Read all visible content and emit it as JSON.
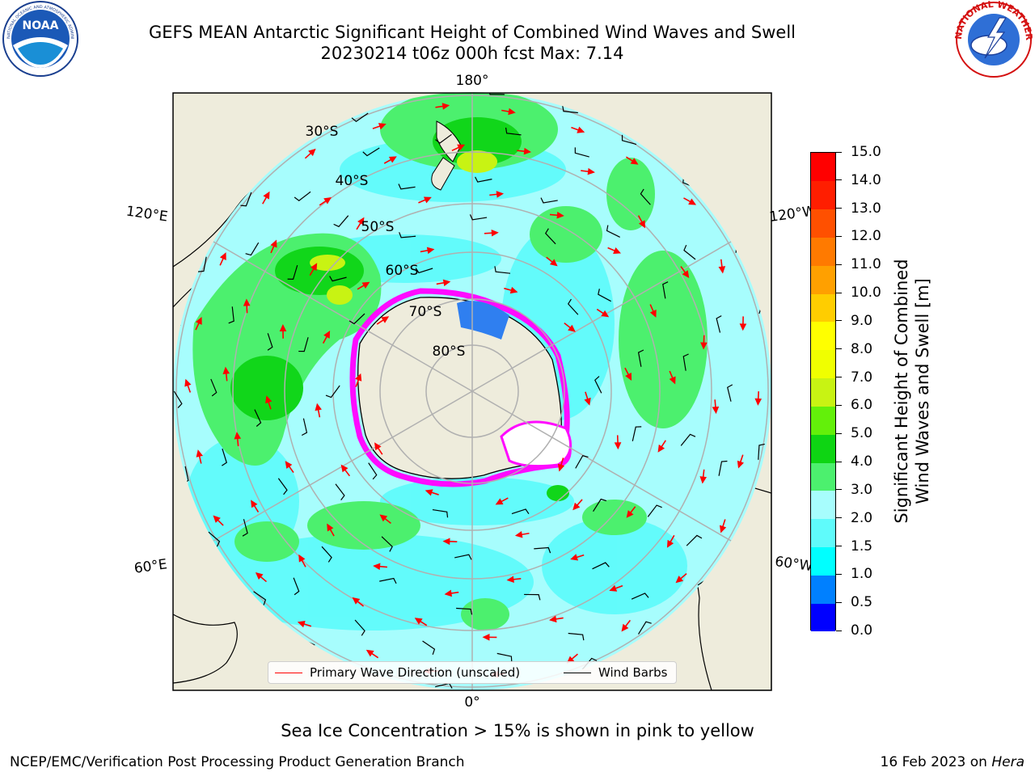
{
  "title": {
    "line1": "GEFS MEAN Antarctic Significant Height of Combined Wind Waves and Swell",
    "line2": "20230214 t06z 000h fcst   Max: 7.14"
  },
  "logos": {
    "left": {
      "icon": "noaa-logo",
      "text": "NOAA",
      "ring_text": "NATIONAL OCEANIC AND ATMOSPHERIC ADMINISTRATION · U.S. DEPARTMENT OF COMMERCE"
    },
    "right": {
      "icon": "nws-logo",
      "ring_text": "NATIONAL WEATHER SERVICE"
    }
  },
  "map": {
    "projection": "south-polar-stereographic",
    "longitude_labels": {
      "top": "180°",
      "bottom": "0°",
      "upper_left": "120°E",
      "lower_left": "60°E",
      "upper_right": "120°W",
      "lower_right": "60°W"
    },
    "latitude_labels": [
      "30°S",
      "40°S",
      "50°S",
      "60°S",
      "70°S",
      "80°S"
    ],
    "colors": {
      "land": "#eeecdc",
      "ocean_light": "#a7fdfd",
      "ocean_mid": "#5ffbfb",
      "wave_3_4": "#4cf06e",
      "wave_4_5": "#11d61a",
      "wave_6_7": "#c8f313",
      "ice_high": "#ff0aff",
      "arrow": "#ff0000",
      "barb": "#000000"
    }
  },
  "colorbar": {
    "label_line1": "Significant Height of Combined",
    "label_line2": "Wind Waves and Swell [m]",
    "levels": [
      "0.0",
      "0.5",
      "1.0",
      "1.5",
      "2.0",
      "3.0",
      "4.0",
      "5.0",
      "6.0",
      "7.0",
      "8.0",
      "9.0",
      "10.0",
      "11.0",
      "12.0",
      "13.0",
      "14.0",
      "15.0"
    ],
    "colors": [
      "#0000ff",
      "#0080ff",
      "#00ffff",
      "#5ffbfb",
      "#a7fdfd",
      "#4cf06e",
      "#0ed513",
      "#63f00a",
      "#c8f313",
      "#f0ff00",
      "#ffff00",
      "#ffcd00",
      "#ffa000",
      "#ff7a00",
      "#ff5000",
      "#ff1e00",
      "#ff0000"
    ]
  },
  "legend": {
    "primary_wave": "Primary Wave Direction (unscaled)",
    "wind_barbs": "Wind Barbs"
  },
  "footnote": "Sea Ice Concentration > 15% is shown in pink to yellow",
  "credit": {
    "left": "NCEP/EMC/Verification Post Processing Product Generation Branch",
    "right_prefix": "16 Feb 2023 on ",
    "right_host": "Hera"
  }
}
